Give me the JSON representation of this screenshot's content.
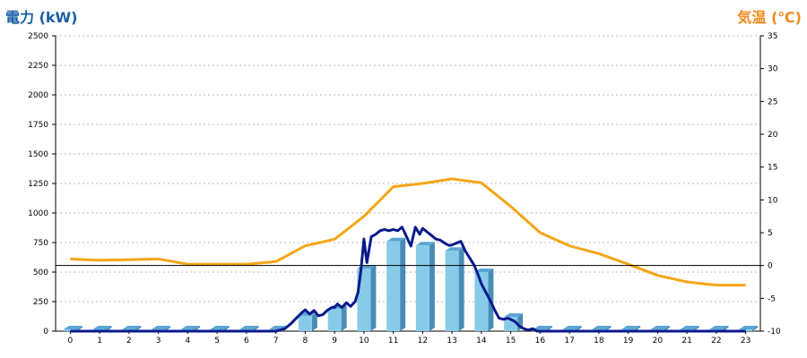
{
  "chart_data": {
    "type": "bar",
    "left_axis": {
      "title": "電力 (kW)",
      "ylim": [
        0,
        2500
      ],
      "ticks": [
        "0",
        "250",
        "500",
        "750",
        "1000",
        "1250",
        "1500",
        "1750",
        "2000",
        "2250",
        "2500"
      ]
    },
    "right_axis": {
      "title": "気温 (℃)",
      "ylim": [
        -10,
        35
      ],
      "ticks": [
        "-10",
        "-5",
        "0",
        "5",
        "10",
        "15",
        "20",
        "25",
        "30",
        "35"
      ]
    },
    "categories": [
      "0",
      "1",
      "2",
      "3",
      "4",
      "5",
      "6",
      "7",
      "8",
      "9",
      "10",
      "11",
      "12",
      "13",
      "14",
      "15",
      "16",
      "17",
      "18",
      "19",
      "20",
      "21",
      "22",
      "23"
    ],
    "grid": true,
    "colors": {
      "bars": "#87cbe8",
      "power_line": "#0a1a8c",
      "temperature_line": "#f5a515",
      "left_title": "#1a5fa8",
      "right_title": "#f08a1c"
    },
    "series": [
      {
        "kind": "bar",
        "axis": "left",
        "values": [
          0,
          0,
          0,
          0,
          0,
          0,
          0,
          0,
          130,
          190,
          530,
          760,
          725,
          680,
          500,
          120,
          0,
          0,
          0,
          0,
          0,
          0,
          0,
          0
        ]
      },
      {
        "kind": "line",
        "axis": "left",
        "x": [
          0,
          1,
          2,
          3,
          4,
          5,
          6,
          7,
          7.15,
          7.3,
          7.5,
          7.7,
          7.9,
          8.0,
          8.15,
          8.3,
          8.45,
          8.6,
          8.75,
          8.9,
          9.0,
          9.1,
          9.25,
          9.4,
          9.55,
          9.7,
          9.8,
          9.9,
          10.0,
          10.1,
          10.25,
          10.4,
          10.55,
          10.7,
          10.85,
          11.0,
          11.15,
          11.3,
          11.45,
          11.6,
          11.75,
          11.9,
          12.0,
          12.15,
          12.3,
          12.45,
          12.6,
          12.75,
          12.9,
          13.0,
          13.15,
          13.3,
          13.45,
          13.6,
          13.75,
          13.9,
          14.0,
          14.15,
          14.3,
          14.45,
          14.6,
          14.75,
          14.9,
          15.0,
          15.15,
          15.3,
          15.45,
          15.6,
          15.75,
          15.9,
          16.0,
          17,
          18,
          19,
          20,
          21,
          22,
          23
        ],
        "values": [
          0,
          0,
          0,
          0,
          0,
          0,
          0,
          0,
          10,
          20,
          60,
          110,
          160,
          180,
          145,
          175,
          130,
          140,
          175,
          200,
          200,
          230,
          200,
          240,
          210,
          250,
          330,
          520,
          780,
          580,
          800,
          820,
          850,
          860,
          850,
          860,
          850,
          880,
          800,
          720,
          880,
          820,
          870,
          840,
          810,
          780,
          770,
          745,
          725,
          730,
          745,
          760,
          680,
          620,
          560,
          470,
          400,
          330,
          260,
          180,
          110,
          100,
          110,
          100,
          80,
          40,
          20,
          10,
          20,
          0,
          0,
          0,
          0,
          0,
          0,
          0,
          0,
          0
        ]
      },
      {
        "kind": "line",
        "axis": "right",
        "x": [
          0,
          1,
          2,
          3,
          4,
          5,
          6,
          7,
          8,
          9,
          10,
          11,
          12,
          13,
          14,
          15,
          16,
          17,
          18,
          19,
          20,
          21,
          22,
          23
        ],
        "values": [
          1.0,
          0.8,
          0.9,
          1.0,
          0.2,
          0.2,
          0.2,
          0.6,
          3.0,
          4.0,
          7.5,
          12.0,
          12.5,
          13.2,
          12.6,
          9.0,
          5.0,
          3.0,
          1.8,
          0.2,
          -1.5,
          -2.5,
          -3.0,
          -3.0
        ]
      }
    ]
  }
}
